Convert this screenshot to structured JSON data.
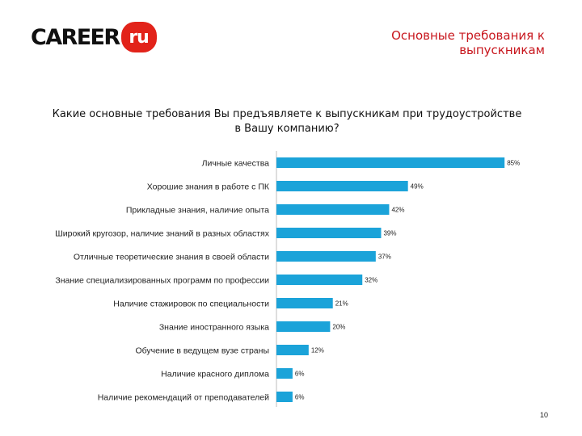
{
  "logo": {
    "text": "CAREER",
    "badge": "ru"
  },
  "slide_title": "Основные требования к выпускникам",
  "page_number": "10",
  "chart_data": {
    "type": "bar",
    "orientation": "horizontal",
    "title": "Какие основные требования Вы предъявляете к выпускникам при трудоустройстве в Вашу компанию?",
    "categories": [
      "Личные качества",
      "Хорошие знания в работе с ПК",
      "Прикладные знания, наличие опыта",
      "Широкий кругозор, наличие знаний в разных областях",
      "Отличные теоретические знания в своей области",
      "Знание специализированных программ по профессии",
      "Наличие стажировок по специальности",
      "Знание иностранного языка",
      "Обучение в ведущем вузе страны",
      "Наличие красного диплома",
      "Наличие рекомендаций от преподавателей"
    ],
    "values": [
      85,
      49,
      42,
      39,
      37,
      32,
      21,
      20,
      12,
      6,
      6
    ],
    "value_labels": [
      "85%",
      "49%",
      "42%",
      "39%",
      "37%",
      "32%",
      "21%",
      "20%",
      "12%",
      "6%",
      "6%"
    ],
    "unit": "%",
    "xlim": [
      0,
      100
    ],
    "bar_color": "#1ba3d9",
    "grid": false,
    "legend": "none"
  }
}
